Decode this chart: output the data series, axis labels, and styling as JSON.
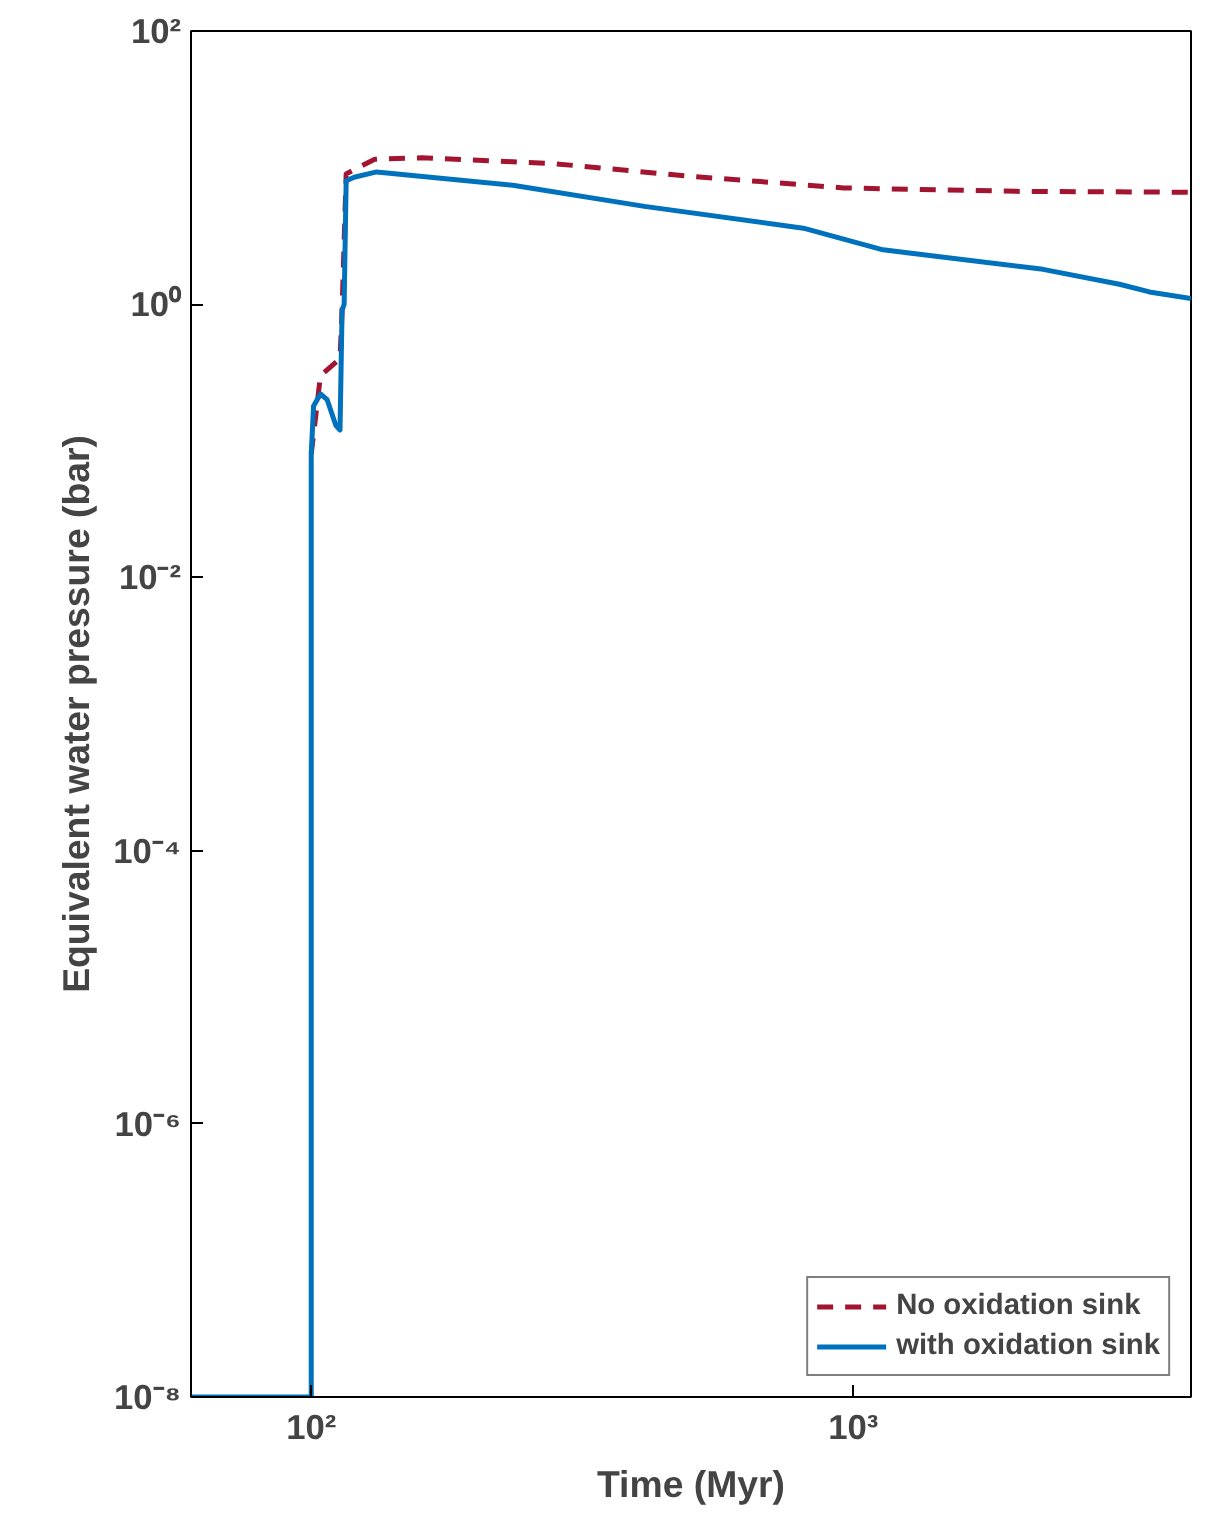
{
  "chart_data": {
    "type": "line",
    "xlabel": "Time (Myr)",
    "ylabel": "Equivalent water pressure (bar)",
    "log": "xy",
    "grid": false,
    "legend": "bottom right",
    "xlim": [
      60,
      4200
    ],
    "ylim": [
      1e-08,
      100
    ],
    "xticks": [
      {
        "value": 100,
        "label": "10²"
      },
      {
        "value": 1000,
        "label": "10³"
      }
    ],
    "yticks": [
      {
        "value": 1e-08,
        "label": "10⁻⁸"
      },
      {
        "value": 1e-06,
        "label": "10⁻⁶"
      },
      {
        "value": 0.0001,
        "label": "10⁻⁴"
      },
      {
        "value": 0.01,
        "label": "10⁻²"
      },
      {
        "value": 1,
        "label": "10⁰"
      },
      {
        "value": 100,
        "label": "10²"
      }
    ],
    "series": [
      {
        "name": "No oxidation sink",
        "color": "#a2142f",
        "line_style": "dashed",
        "x": [
          100,
          104,
          113,
          114,
          116,
          125,
          131,
          160,
          280,
          490,
          960,
          2000,
          4200
        ],
        "values": [
          0.08,
          0.3,
          0.4,
          0.9,
          9,
          10.5,
          11.5,
          11.8,
          10.7,
          8.7,
          7.1,
          6.7,
          6.6
        ]
      },
      {
        "name": "with oxidation sink",
        "color": "#0072bd",
        "line_style": "solid",
        "x": [
          60,
          100,
          100,
          101,
          104,
          107,
          111,
          113,
          114,
          115,
          116,
          120,
          132,
          237,
          412,
          809,
          1135,
          2240,
          3100,
          3520,
          4200
        ],
        "values": [
          1e-08,
          1e-08,
          0.08,
          0.18,
          0.22,
          0.2,
          0.13,
          0.12,
          0.9,
          1,
          8,
          8.5,
          9.3,
          7.4,
          5.2,
          3.6,
          2.5,
          1.8,
          1.4,
          1.23,
          1.1
        ]
      }
    ]
  }
}
